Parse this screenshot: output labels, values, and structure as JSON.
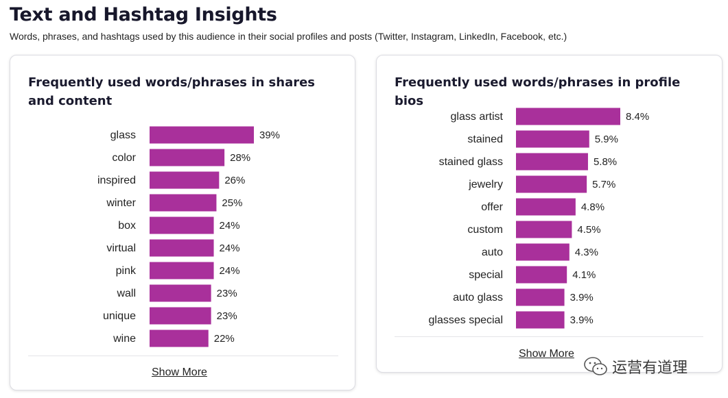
{
  "header": {
    "title": "Text and Hashtag Insights",
    "subtitle": "Words, phrases, and hashtags used by this audience in their social profiles and posts (Twitter, Instagram, LinkedIn, Facebook, etc.)"
  },
  "left_card": {
    "title": "Frequently used words/phrases in shares and content",
    "show_more_label": "Show More"
  },
  "right_card": {
    "title": "Frequently used words/phrases in profile bios",
    "show_more_label": "Show More"
  },
  "watermark": {
    "text": "运营有道理",
    "icon": "wechat-icon"
  },
  "colors": {
    "bar": "#a9309b"
  },
  "chart_data": [
    {
      "type": "bar",
      "orientation": "horizontal",
      "title": "Frequently used words/phrases in shares and content",
      "categories": [
        "glass",
        "color",
        "inspired",
        "winter",
        "box",
        "virtual",
        "pink",
        "wall",
        "unique",
        "wine"
      ],
      "values": [
        39,
        28,
        26,
        25,
        24,
        24,
        24,
        23,
        23,
        22
      ],
      "value_labels": [
        "39%",
        "28%",
        "26%",
        "25%",
        "24%",
        "24%",
        "24%",
        "23%",
        "23%",
        "22%"
      ],
      "unit": "%"
    },
    {
      "type": "bar",
      "orientation": "horizontal",
      "title": "Frequently used words/phrases in profile bios",
      "categories": [
        "glass artist",
        "stained",
        "stained glass",
        "jewelry",
        "offer",
        "custom",
        "auto",
        "special",
        "auto glass",
        "glasses special"
      ],
      "values": [
        8.4,
        5.9,
        5.8,
        5.7,
        4.8,
        4.5,
        4.3,
        4.1,
        3.9,
        3.9
      ],
      "value_labels": [
        "8.4%",
        "5.9%",
        "5.8%",
        "5.7%",
        "4.8%",
        "4.5%",
        "4.3%",
        "4.1%",
        "3.9%",
        "3.9%"
      ],
      "unit": "%"
    }
  ]
}
